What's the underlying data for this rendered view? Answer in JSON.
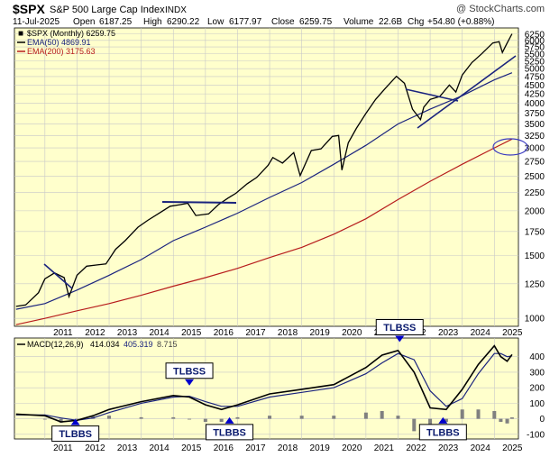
{
  "header": {
    "symbol": "$SPX",
    "name": "S&P 500 Large Cap Index",
    "exchange": "INDX",
    "watermark": "@ StockCharts.com",
    "date": "11-Jul-2025",
    "open_label": "Open",
    "open": "6187.25",
    "high_label": "High",
    "high": "6290.22",
    "low_label": "Low",
    "low": "6177.97",
    "close_label": "Close",
    "close": "6259.75",
    "volume_label": "Volume",
    "volume": "22.6B",
    "chg_label": "Chg",
    "chg": "+54.80 (+0.88%)"
  },
  "legend": {
    "price": "$SPX (Monthly) 6259.75",
    "ema50": "EMA(50) 4869.91",
    "ema200": "EMA(200) 3175.63"
  },
  "macd_legend": {
    "label": "MACD(12,26,9)",
    "macd": "414.034",
    "signal": "405.319",
    "hist": "8.715"
  },
  "colors": {
    "panel_bg": "#ffffcc",
    "price": "#000000",
    "ema50": "#1a237e",
    "ema200": "#b71c1c",
    "macd": "#000000",
    "signal": "#1a237e",
    "hist": "#808080",
    "annotation": "#0000cc",
    "box_border": "#000000"
  },
  "annotations": [
    {
      "label": "TLBBS",
      "year": 2011.95,
      "macd": 0
    },
    {
      "label": "TLBSS",
      "year": 2015.5,
      "macd": 150
    },
    {
      "label": "TLBBS",
      "year": 2016.75,
      "macd": 10
    },
    {
      "label": "TLBSS",
      "year": 2022.05,
      "macd": 430
    },
    {
      "label": "TLBBS",
      "year": 2023.4,
      "macd": 10
    }
  ],
  "chart_data": [
    {
      "type": "line",
      "title": "$SPX S&P 500 Large Cap Index INDX",
      "scale": "log",
      "y_ticks": [
        1000,
        1250,
        1500,
        1750,
        2000,
        2250,
        2500,
        2750,
        3000,
        3250,
        3500,
        3750,
        4000,
        4250,
        4500,
        4750,
        5000,
        5250,
        5500,
        5750,
        6000,
        6250
      ],
      "x_ticks": [
        "2011",
        "2012",
        "2013",
        "2014",
        "2015",
        "2016",
        "2017",
        "2018",
        "2019",
        "2020",
        "2021",
        "2022",
        "2023",
        "2024",
        "2025"
      ],
      "xlim": [
        2010.05,
        2025.75
      ],
      "ylim": [
        950,
        6500
      ],
      "series": [
        {
          "name": "$SPX (Monthly)",
          "x": [
            2010.1,
            2010.4,
            2010.8,
            2011.0,
            2011.3,
            2011.6,
            2011.75,
            2012.0,
            2012.3,
            2012.6,
            2012.9,
            2013.2,
            2013.5,
            2013.9,
            2014.2,
            2014.6,
            2014.9,
            2015.2,
            2015.45,
            2015.7,
            2016.1,
            2016.4,
            2016.7,
            2016.95,
            2017.3,
            2017.6,
            2017.95,
            2018.1,
            2018.4,
            2018.75,
            2018.95,
            2019.3,
            2019.6,
            2019.95,
            2020.15,
            2020.25,
            2020.45,
            2020.7,
            2021.0,
            2021.3,
            2021.6,
            2021.95,
            2022.2,
            2022.45,
            2022.7,
            2022.8,
            2023.0,
            2023.3,
            2023.6,
            2023.8,
            2024.0,
            2024.3,
            2024.6,
            2024.95,
            2025.15,
            2025.25,
            2025.4,
            2025.55
          ],
          "y": [
            1080,
            1090,
            1180,
            1290,
            1340,
            1300,
            1150,
            1320,
            1400,
            1410,
            1420,
            1560,
            1650,
            1800,
            1880,
            1980,
            2060,
            2080,
            2100,
            1940,
            1960,
            2080,
            2170,
            2240,
            2380,
            2480,
            2680,
            2820,
            2720,
            2910,
            2510,
            2950,
            2980,
            3230,
            3250,
            2600,
            3100,
            3400,
            3750,
            4100,
            4400,
            4760,
            4550,
            3850,
            3600,
            3900,
            4100,
            4180,
            4500,
            4300,
            4800,
            5200,
            5500,
            5900,
            5950,
            5550,
            5900,
            6260
          ]
        },
        {
          "name": "EMA(50)",
          "x": [
            2010.1,
            2011.0,
            2012.0,
            2013.0,
            2014.0,
            2015.0,
            2016.0,
            2017.0,
            2018.0,
            2019.0,
            2020.0,
            2021.0,
            2022.0,
            2023.0,
            2024.0,
            2025.0,
            2025.55
          ],
          "y": [
            1060,
            1100,
            1200,
            1320,
            1460,
            1650,
            1800,
            1970,
            2180,
            2400,
            2700,
            3050,
            3500,
            3850,
            4200,
            4650,
            4870
          ]
        },
        {
          "name": "EMA(200)",
          "x": [
            2010.1,
            2011.0,
            2012.0,
            2013.0,
            2014.0,
            2015.0,
            2016.0,
            2017.0,
            2018.0,
            2019.0,
            2020.0,
            2021.0,
            2022.0,
            2023.0,
            2024.0,
            2025.0,
            2025.55
          ],
          "y": [
            960,
            1000,
            1050,
            1100,
            1160,
            1230,
            1300,
            1380,
            1480,
            1580,
            1720,
            1900,
            2150,
            2420,
            2700,
            3000,
            3176
          ]
        }
      ]
    },
    {
      "type": "line",
      "title": "MACD(12,26,9)",
      "y_ticks": [
        -100,
        0,
        100,
        200,
        300,
        400
      ],
      "x_ticks": [
        "2011",
        "2012",
        "2013",
        "2014",
        "2015",
        "2016",
        "2017",
        "2018",
        "2019",
        "2020",
        "2021",
        "2022",
        "2023",
        "2024",
        "2025"
      ],
      "xlim": [
        2010.05,
        2025.75
      ],
      "ylim": [
        -130,
        520
      ],
      "series": [
        {
          "name": "MACD",
          "x": [
            2010.1,
            2011.0,
            2011.5,
            2012.0,
            2012.5,
            2013.0,
            2014.0,
            2015.0,
            2015.5,
            2016.0,
            2016.5,
            2017.0,
            2018.0,
            2019.0,
            2020.0,
            2021.0,
            2021.5,
            2022.0,
            2022.5,
            2023.0,
            2023.5,
            2024.0,
            2024.5,
            2025.0,
            2025.2,
            2025.4,
            2025.55
          ],
          "y": [
            30,
            20,
            -20,
            -10,
            20,
            60,
            110,
            150,
            140,
            90,
            60,
            90,
            160,
            190,
            220,
            330,
            410,
            440,
            300,
            70,
            60,
            190,
            350,
            470,
            400,
            370,
            414
          ]
        },
        {
          "name": "Signal",
          "x": [
            2010.1,
            2011.0,
            2011.5,
            2012.0,
            2012.5,
            2013.0,
            2014.0,
            2015.0,
            2015.5,
            2016.0,
            2016.5,
            2017.0,
            2018.0,
            2019.0,
            2020.0,
            2021.0,
            2021.5,
            2022.0,
            2022.5,
            2023.0,
            2023.5,
            2024.0,
            2024.5,
            2025.0,
            2025.2,
            2025.4,
            2025.55
          ],
          "y": [
            25,
            25,
            5,
            -10,
            5,
            40,
            100,
            140,
            145,
            110,
            80,
            80,
            140,
            170,
            200,
            290,
            360,
            420,
            380,
            180,
            80,
            130,
            290,
            420,
            420,
            400,
            405
          ]
        },
        {
          "name": "Histogram",
          "x": [
            2011.0,
            2011.5,
            2012.0,
            2012.5,
            2013.0,
            2014.0,
            2015.0,
            2015.5,
            2016.0,
            2016.5,
            2017.0,
            2018.0,
            2019.0,
            2020.0,
            2021.0,
            2021.5,
            2022.0,
            2022.5,
            2023.0,
            2023.5,
            2024.0,
            2024.5,
            2025.0,
            2025.2,
            2025.4,
            2025.55
          ],
          "y": [
            -5,
            -25,
            0,
            15,
            20,
            10,
            10,
            -5,
            -20,
            -20,
            10,
            20,
            20,
            20,
            40,
            50,
            20,
            -80,
            -110,
            -20,
            60,
            60,
            50,
            -20,
            -30,
            9
          ]
        }
      ]
    }
  ]
}
